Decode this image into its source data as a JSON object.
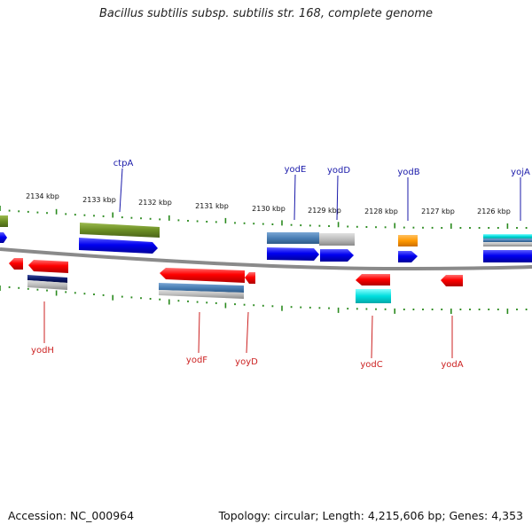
{
  "title": "Bacillus subtilis subsp. subtilis str. 168, complete genome",
  "footer": {
    "accession_label": "Accession:",
    "accession": "NC_000964",
    "topology_label": "Topology:",
    "topology": "circular",
    "length_label": "Length:",
    "length": "4,215,606 bp",
    "genes_label": "Genes:",
    "genes": "4,353"
  },
  "colors": {
    "tick": "#2a8a1e",
    "backbone": "#8a8a8a",
    "cds_forward": "#0000ee",
    "cds_reverse": "#ff0000",
    "label_forward": "#1a1aaa",
    "label_reverse": "#cc2222",
    "cog_olive": "#6b8e23",
    "cog_steelblue": "#4a7fb5",
    "cog_gray": "#b8b8b8",
    "cog_orange": "#ff9900",
    "cog_cyan": "#00d8d8",
    "cog_navy": "#0a1a6a"
  },
  "diagram": {
    "type": "circular-genome-map-zoomed",
    "scale_labels": [
      "2134 kbp",
      "2133 kbp",
      "2132 kbp",
      "2131 kbp",
      "2130 kbp",
      "2129 kbp",
      "2128 kbp",
      "2127 kbp",
      "2126 kbp"
    ],
    "forward_genes": [
      "ctpA",
      "yodE",
      "yodD",
      "yodB",
      "yojA"
    ],
    "reverse_genes": [
      "yodH",
      "yodF",
      "yoyD",
      "yodC",
      "yodA"
    ]
  }
}
